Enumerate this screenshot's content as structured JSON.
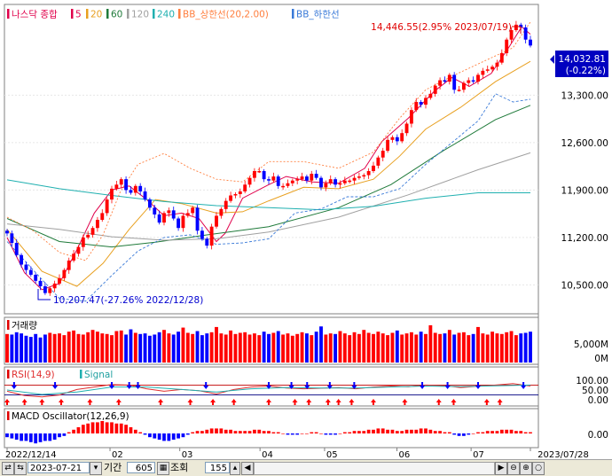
{
  "chart_data": {
    "type": "candlestick",
    "instrument": "나스닥 종합",
    "legend": [
      {
        "name": "5",
        "color": "#e0004b"
      },
      {
        "name": "20",
        "color": "#e8a020"
      },
      {
        "name": "60",
        "color": "#1f7a3a"
      },
      {
        "name": "120",
        "color": "#a0a0a0"
      },
      {
        "name": "240",
        "color": "#20b0b0"
      },
      {
        "name": "BB_상한선(20,2.00)",
        "color": "#ff7f3f"
      },
      {
        "name": "BB_하한선",
        "color": "#3a7ad8"
      }
    ],
    "y_ticks": [
      "13,300.00",
      "12,600.00",
      "11,900.00",
      "11,200.00",
      "10,500.00"
    ],
    "ylim": [
      10100,
      14600
    ],
    "x_ticks": [
      "2022/12/14",
      "02",
      "03",
      "04",
      "05",
      "06",
      "07",
      "2023/07/28"
    ],
    "high_annotation": "14,446.55(2.95% 2023/07/19)",
    "low_annotation": "10,207.47(-27.26% 2022/12/28)",
    "current_price": "14,032.81",
    "current_change": "(-0.22%)",
    "closes": [
      11260,
      11120,
      10940,
      10800,
      10720,
      10650,
      10560,
      10480,
      10380,
      10450,
      10520,
      10600,
      10720,
      10860,
      10960,
      11060,
      11200,
      11240,
      11340,
      11460,
      11560,
      11760,
      11920,
      11980,
      12060,
      11900,
      11860,
      11960,
      11880,
      11760,
      11640,
      11540,
      11420,
      11560,
      11600,
      11480,
      11340,
      11520,
      11560,
      11640,
      11300,
      11180,
      11080,
      11360,
      11520,
      11620,
      11740,
      11820,
      11840,
      11880,
      11980,
      12080,
      12180,
      12180,
      12060,
      12040,
      12100,
      11960,
      11960,
      12000,
      12040,
      12060,
      12100,
      12040,
      12140,
      12080,
      11940,
      12000,
      12060,
      11980,
      12000,
      12040,
      12040,
      12080,
      12100,
      12120,
      12180,
      12260,
      12380,
      12480,
      12640,
      12680,
      12620,
      12740,
      12880,
      13080,
      13200,
      13160,
      13260,
      13320,
      13440,
      13520,
      13500,
      13600,
      13380,
      13380,
      13480,
      13520,
      13500,
      13600,
      13660,
      13680,
      13720,
      13780,
      13920,
      14120,
      14260,
      14340,
      14300,
      14120,
      14032.81
    ],
    "ma": [
      {
        "name": "5",
        "color": "#e0004b",
        "points": [
          [
            0,
            11200
          ],
          [
            20,
            10680
          ],
          [
            40,
            10430
          ],
          [
            60,
            10520
          ],
          [
            80,
            11020
          ],
          [
            100,
            11560
          ],
          [
            120,
            11900
          ],
          [
            140,
            11960
          ],
          [
            160,
            11760
          ],
          [
            180,
            11520
          ],
          [
            200,
            11560
          ],
          [
            220,
            11480
          ],
          [
            240,
            11140
          ],
          [
            250,
            11260
          ],
          [
            270,
            11780
          ],
          [
            300,
            11980
          ],
          [
            320,
            12100
          ],
          [
            350,
            12020
          ],
          [
            380,
            12000
          ],
          [
            410,
            12220
          ],
          [
            430,
            12620
          ],
          [
            460,
            12960
          ],
          [
            490,
            13360
          ],
          [
            510,
            13560
          ],
          [
            530,
            13430
          ],
          [
            555,
            13620
          ],
          [
            575,
            14000
          ],
          [
            590,
            14310
          ],
          [
            600,
            14200
          ]
        ]
      },
      {
        "name": "20",
        "color": "#e8a020",
        "points": [
          [
            0,
            11320
          ],
          [
            40,
            10700
          ],
          [
            80,
            10480
          ],
          [
            110,
            10820
          ],
          [
            140,
            11320
          ],
          [
            170,
            11760
          ],
          [
            200,
            11700
          ],
          [
            240,
            11560
          ],
          [
            270,
            11580
          ],
          [
            300,
            11740
          ],
          [
            340,
            11940
          ],
          [
            380,
            11920
          ],
          [
            420,
            12060
          ],
          [
            450,
            12400
          ],
          [
            480,
            12800
          ],
          [
            520,
            13120
          ],
          [
            560,
            13500
          ],
          [
            600,
            13800
          ]
        ]
      },
      {
        "name": "60",
        "color": "#1f7a3a",
        "points": [
          [
            0,
            11480
          ],
          [
            60,
            11140
          ],
          [
            120,
            11060
          ],
          [
            170,
            11130
          ],
          [
            230,
            11240
          ],
          [
            300,
            11360
          ],
          [
            380,
            11640
          ],
          [
            440,
            11980
          ],
          [
            500,
            12480
          ],
          [
            560,
            12940
          ],
          [
            600,
            13150
          ]
        ]
      },
      {
        "name": "120",
        "color": "#a0a0a0",
        "points": [
          [
            0,
            11400
          ],
          [
            60,
            11320
          ],
          [
            120,
            11210
          ],
          [
            180,
            11160
          ],
          [
            240,
            11180
          ],
          [
            300,
            11280
          ],
          [
            380,
            11500
          ],
          [
            460,
            11830
          ],
          [
            540,
            12200
          ],
          [
            600,
            12450
          ]
        ]
      },
      {
        "name": "240",
        "color": "#20b0b0",
        "points": [
          [
            0,
            12050
          ],
          [
            60,
            11920
          ],
          [
            120,
            11820
          ],
          [
            180,
            11730
          ],
          [
            240,
            11670
          ],
          [
            300,
            11640
          ],
          [
            360,
            11610
          ],
          [
            420,
            11660
          ],
          [
            480,
            11780
          ],
          [
            540,
            11860
          ],
          [
            600,
            11860
          ]
        ]
      }
    ],
    "bb_upper_points": [
      [
        0,
        11500
      ],
      [
        30,
        11300
      ],
      [
        60,
        10980
      ],
      [
        90,
        10860
      ],
      [
        110,
        11240
      ],
      [
        130,
        11880
      ],
      [
        150,
        12280
      ],
      [
        180,
        12440
      ],
      [
        210,
        12220
      ],
      [
        240,
        12060
      ],
      [
        270,
        12020
      ],
      [
        300,
        12320
      ],
      [
        340,
        12320
      ],
      [
        380,
        12220
      ],
      [
        420,
        12460
      ],
      [
        450,
        12960
      ],
      [
        480,
        13380
      ],
      [
        510,
        13580
      ],
      [
        550,
        13820
      ],
      [
        580,
        14000
      ],
      [
        600,
        14380
      ]
    ],
    "bb_lower_points": [
      [
        0,
        11140
      ],
      [
        30,
        10720
      ],
      [
        60,
        10300
      ],
      [
        90,
        10260
      ],
      [
        120,
        10640
      ],
      [
        150,
        11000
      ],
      [
        180,
        11200
      ],
      [
        210,
        11240
      ],
      [
        240,
        11100
      ],
      [
        270,
        11120
      ],
      [
        300,
        11180
      ],
      [
        330,
        11560
      ],
      [
        360,
        11620
      ],
      [
        390,
        11800
      ],
      [
        420,
        11800
      ],
      [
        450,
        11920
      ],
      [
        480,
        12280
      ],
      [
        510,
        12600
      ],
      [
        540,
        12920
      ],
      [
        560,
        13320
      ],
      [
        580,
        13200
      ],
      [
        600,
        13240
      ]
    ],
    "volume_title": "거래량",
    "volume_ticks": [
      "5,000M",
      "0M"
    ],
    "volume_values": [
      4.9,
      4.8,
      5.2,
      5.0,
      4.6,
      4.4,
      4.9,
      4.3,
      4.8,
      5.1,
      4.9,
      5.0,
      4.7,
      5.3,
      5.5,
      4.9,
      4.8,
      5.2,
      5.6,
      5.3,
      5.0,
      4.9,
      4.7,
      5.4,
      5.5,
      4.8,
      5.7,
      5.1,
      4.9,
      5.0,
      4.6,
      4.8,
      5.2,
      5.6,
      5.0,
      4.8,
      5.3,
      6.0,
      5.1,
      4.9,
      5.4,
      4.7,
      5.0,
      5.2,
      6.1,
      5.0,
      4.8,
      5.5,
      4.9,
      5.1,
      5.2,
      4.8,
      5.0,
      4.7,
      5.3,
      4.9,
      5.1,
      5.4,
      4.8,
      5.0,
      4.6,
      4.9,
      5.2,
      5.0,
      4.7,
      5.3,
      6.2,
      4.8,
      5.0,
      4.9,
      5.4,
      5.0,
      4.7,
      5.2,
      4.9,
      5.6,
      5.1,
      4.9,
      5.3,
      5.0,
      4.7,
      5.1,
      5.5,
      4.8,
      5.0,
      5.2,
      4.8,
      5.3,
      4.9,
      6.4,
      5.1,
      4.9,
      5.0,
      5.6,
      4.8,
      5.1,
      5.2,
      4.7,
      4.9,
      6.1,
      5.0,
      4.8,
      5.3,
      5.0,
      4.9,
      5.2,
      5.4,
      4.7,
      5.0,
      5.1,
      5.3
    ],
    "rsi_title": "RSI(14,9)",
    "signal_label": "Signal",
    "rsi_ticks": [
      "100.00",
      "50.00",
      "0.00"
    ],
    "rsi_points": [
      [
        0,
        45
      ],
      [
        20,
        28
      ],
      [
        40,
        22
      ],
      [
        60,
        30
      ],
      [
        80,
        52
      ],
      [
        100,
        62
      ],
      [
        120,
        72
      ],
      [
        140,
        70
      ],
      [
        160,
        55
      ],
      [
        180,
        45
      ],
      [
        200,
        52
      ],
      [
        220,
        47
      ],
      [
        240,
        34
      ],
      [
        260,
        52
      ],
      [
        280,
        62
      ],
      [
        300,
        66
      ],
      [
        320,
        58
      ],
      [
        340,
        55
      ],
      [
        360,
        57
      ],
      [
        380,
        60
      ],
      [
        400,
        55
      ],
      [
        420,
        62
      ],
      [
        440,
        66
      ],
      [
        460,
        63
      ],
      [
        480,
        70
      ],
      [
        500,
        68
      ],
      [
        520,
        60
      ],
      [
        540,
        65
      ],
      [
        560,
        70
      ],
      [
        580,
        76
      ],
      [
        600,
        66
      ]
    ],
    "signal_points": [
      [
        0,
        50
      ],
      [
        40,
        32
      ],
      [
        80,
        42
      ],
      [
        120,
        62
      ],
      [
        160,
        62
      ],
      [
        200,
        52
      ],
      [
        240,
        42
      ],
      [
        280,
        55
      ],
      [
        320,
        60
      ],
      [
        360,
        58
      ],
      [
        400,
        58
      ],
      [
        440,
        62
      ],
      [
        480,
        66
      ],
      [
        520,
        64
      ],
      [
        560,
        67
      ],
      [
        600,
        70
      ]
    ],
    "macd_title": "MACD Oscillator(12,26,9)",
    "macd_tick": "0.00",
    "macd_values": [
      -3,
      -4,
      -5,
      -6,
      -6,
      -7,
      -8,
      -7,
      -6,
      -6,
      -5,
      -3,
      -2,
      1,
      3,
      5,
      7,
      8,
      9,
      9,
      10,
      9,
      9,
      8,
      8,
      7,
      5,
      3,
      1,
      -1,
      -3,
      -4,
      -5,
      -6,
      -6,
      -5,
      -4,
      -3,
      -1,
      1,
      2,
      2,
      3,
      4,
      4,
      4,
      3,
      3,
      2,
      2,
      2,
      2,
      3,
      3,
      2,
      2,
      1,
      1,
      0,
      -1,
      -1,
      -1,
      0,
      0,
      1,
      1,
      0,
      -1,
      -1,
      -1,
      0,
      1,
      1,
      2,
      2,
      2,
      3,
      3,
      4,
      4,
      3,
      3,
      2,
      2,
      3,
      3,
      3,
      4,
      4,
      3,
      2,
      2,
      1,
      1,
      -1,
      -2,
      -2,
      -1,
      0,
      1,
      1,
      2,
      2,
      2,
      3,
      3,
      3,
      2,
      2,
      1,
      1
    ],
    "buy_signal_indices": [
      0,
      20,
      40,
      62,
      95,
      128,
      176,
      210,
      236,
      260,
      300,
      330,
      346,
      368,
      380,
      395,
      420,
      456,
      495,
      512,
      550,
      565
    ],
    "sell_signal_indices": [
      8,
      55,
      120,
      140,
      150,
      228,
      300,
      326,
      344,
      370,
      398,
      476,
      505,
      540,
      592
    ]
  },
  "toolbar": {
    "date": "2023-07-21",
    "period_label": "기간",
    "period_value": "605",
    "lookup_label": "조회",
    "lookup_value": "155"
  },
  "colors": {
    "up": "#ff0000",
    "down": "#0000ff",
    "axis_text": "#000000",
    "border": "#808080"
  }
}
